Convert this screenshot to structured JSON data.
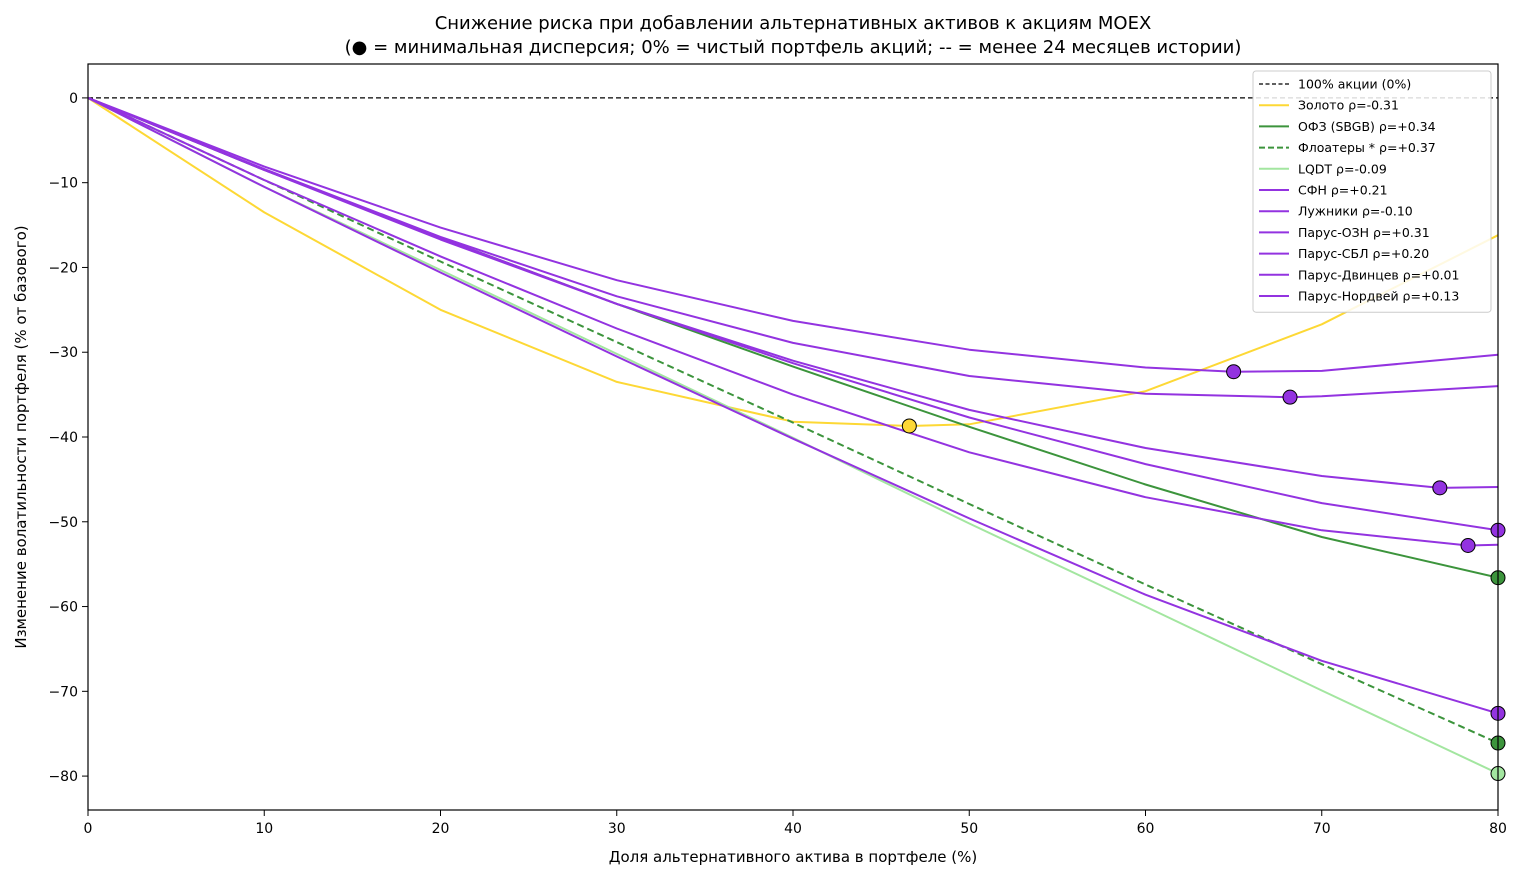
{
  "chart_data": {
    "type": "line",
    "title": "Снижение риска при добавлении альтернативных активов к акциям MOEX",
    "subtitle": "(● = минимальная дисперсия; 0% = чистый портфель акций; -- = менее 24 месяцев истории)",
    "xlabel": "Доля альтернативного актива в портфеле (%)",
    "ylabel": "Изменение волатильности портфеля (% от базового)",
    "xlim": [
      0,
      80
    ],
    "ylim": [
      -84,
      4
    ],
    "xticks": [
      0,
      10,
      20,
      30,
      40,
      50,
      60,
      70,
      80
    ],
    "yticks": [
      0,
      -10,
      -20,
      -30,
      -40,
      -50,
      -60,
      -70,
      -80
    ],
    "grid": false,
    "legend_position": "top-right",
    "baseline": {
      "name": "100% акции (0%)",
      "y": 0,
      "color": "#000000",
      "dashed": true
    },
    "series": [
      {
        "name": "Золото  ρ=-0.31",
        "color": "#fdd835",
        "dashed": false,
        "x": [
          0,
          10,
          20,
          30,
          40,
          46.6,
          50,
          60,
          70,
          80
        ],
        "values": [
          0,
          -13.5,
          -25,
          -33.5,
          -38.2,
          -38.7,
          -38.5,
          -34.6,
          -26.7,
          -16.2
        ],
        "min_point": {
          "x": 46.6,
          "y": -38.7
        }
      },
      {
        "name": "ОФЗ (SBGB)  ρ=+0.34",
        "color": "#3c943c",
        "dashed": false,
        "x": [
          0,
          10,
          20,
          30,
          40,
          50,
          60,
          70,
          80
        ],
        "values": [
          0,
          -8.5,
          -16.5,
          -24.3,
          -31.7,
          -38.8,
          -45.6,
          -51.8,
          -56.6
        ],
        "min_point": {
          "x": 80,
          "y": -56.6
        }
      },
      {
        "name": "Флоатеры *  ρ=+0.37",
        "color": "#3c943c",
        "dashed": true,
        "x": [
          0,
          10,
          20,
          30,
          40,
          50,
          60,
          70,
          80
        ],
        "values": [
          0,
          -9.7,
          -19.3,
          -28.8,
          -38.3,
          -47.9,
          -57.4,
          -66.8,
          -76.1
        ],
        "min_point": {
          "x": 80,
          "y": -76.1
        }
      },
      {
        "name": "LQDT  ρ=-0.09",
        "color": "#a3e6a0",
        "dashed": false,
        "x": [
          0,
          10,
          20,
          30,
          40,
          50,
          60,
          70,
          80
        ],
        "values": [
          0,
          -10.5,
          -20.3,
          -30.2,
          -40.1,
          -50.2,
          -60,
          -69.9,
          -79.7
        ],
        "min_point": {
          "x": 80,
          "y": -79.7
        }
      },
      {
        "name": "СФН  ρ=+0.21",
        "color": "#9333e0",
        "dashed": false,
        "x": [
          0,
          10,
          20,
          30,
          40,
          50,
          60,
          70,
          80
        ],
        "values": [
          0,
          -8.5,
          -16.7,
          -24.3,
          -31.3,
          -37.7,
          -43.2,
          -47.8,
          -51
        ],
        "min_point": {
          "x": 80,
          "y": -51
        }
      },
      {
        "name": "Лужники  ρ=-0.10",
        "color": "#9333e0",
        "dashed": false,
        "x": [
          0,
          10,
          20,
          30,
          40,
          50,
          60,
          65,
          70,
          80
        ],
        "values": [
          0,
          -8.1,
          -15.3,
          -21.5,
          -26.3,
          -29.7,
          -31.8,
          -32.3,
          -32.2,
          -30.3
        ],
        "min_point": {
          "x": 65,
          "y": -32.3
        }
      },
      {
        "name": "Парус-ОЗН  ρ=+0.31",
        "color": "#9333e0",
        "dashed": false,
        "x": [
          0,
          10,
          20,
          30,
          40,
          50,
          60,
          68.2,
          70,
          80
        ],
        "values": [
          0,
          -8.4,
          -16.4,
          -23.4,
          -28.9,
          -32.8,
          -34.9,
          -35.3,
          -35.2,
          -34
        ],
        "min_point": {
          "x": 68.2,
          "y": -35.3
        }
      },
      {
        "name": "Парус-СБЛ  ρ=+0.20",
        "color": "#9333e0",
        "dashed": false,
        "x": [
          0,
          10,
          20,
          30,
          40,
          50,
          60,
          70,
          76.7,
          80
        ],
        "values": [
          0,
          -8.5,
          -16.5,
          -24.3,
          -31,
          -36.8,
          -41.3,
          -44.6,
          -46,
          -45.9
        ],
        "min_point": {
          "x": 76.7,
          "y": -46
        }
      },
      {
        "name": "Парус-Двинцев  ρ=+0.01",
        "color": "#9333e0",
        "dashed": false,
        "x": [
          0,
          10,
          20,
          30,
          40,
          50,
          60,
          70,
          78.3,
          80
        ],
        "values": [
          0,
          -9.7,
          -18.7,
          -27.2,
          -35,
          -41.8,
          -47.1,
          -51,
          -52.8,
          -52.7
        ],
        "min_point": {
          "x": 78.3,
          "y": -52.8
        }
      },
      {
        "name": "Парус-Нордвей  ρ=+0.13",
        "color": "#9333e0",
        "dashed": false,
        "x": [
          0,
          10,
          20,
          30,
          40,
          50,
          60,
          70,
          80
        ],
        "values": [
          0,
          -10.5,
          -20.6,
          -30.5,
          -40.2,
          -49.6,
          -58.6,
          -66.4,
          -72.6
        ],
        "min_point": {
          "x": 80,
          "y": -72.6
        }
      }
    ]
  }
}
